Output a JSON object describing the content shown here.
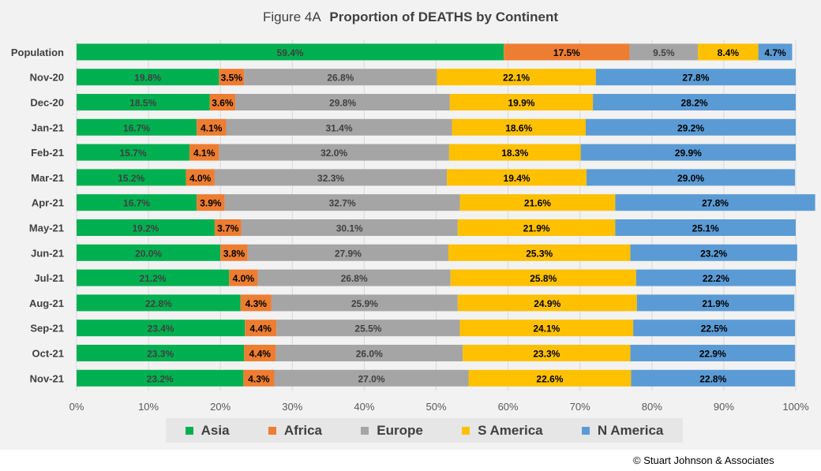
{
  "chart_data": {
    "type": "bar",
    "orientation": "horizontal",
    "stacked": "percent",
    "title_prefix": "Figure  4A",
    "title": "Proportion of DEATHS by Continent",
    "categories": [
      "Population",
      "Nov-20",
      "Dec-20",
      "Jan-21",
      "Feb-21",
      "Mar-21",
      "Apr-21",
      "May-21",
      "Jun-21",
      "Jul-21",
      "Aug-21",
      "Sep-21",
      "Oct-21",
      "Nov-21"
    ],
    "series": [
      {
        "name": "Asia",
        "color": "#00b050",
        "values": [
          59.4,
          19.8,
          18.5,
          16.7,
          15.7,
          15.2,
          16.7,
          19.2,
          20.0,
          21.2,
          22.8,
          23.4,
          23.3,
          23.2
        ]
      },
      {
        "name": "Africa",
        "color": "#ed7d31",
        "values": [
          17.5,
          3.5,
          3.6,
          4.1,
          4.1,
          4.0,
          3.9,
          3.7,
          3.8,
          4.0,
          4.3,
          4.4,
          4.4,
          4.3
        ]
      },
      {
        "name": "Europe",
        "color": "#a5a5a5",
        "values": [
          9.5,
          26.8,
          29.8,
          31.4,
          32.0,
          32.3,
          32.7,
          30.1,
          27.9,
          26.8,
          25.9,
          25.5,
          26.0,
          27.0
        ]
      },
      {
        "name": "S America",
        "color": "#ffc000",
        "values": [
          8.4,
          22.1,
          19.9,
          18.6,
          18.3,
          19.4,
          21.6,
          21.9,
          25.3,
          25.8,
          24.9,
          24.1,
          23.3,
          22.6
        ]
      },
      {
        "name": "N America",
        "color": "#5b9bd5",
        "values": [
          4.7,
          27.8,
          28.2,
          29.2,
          29.9,
          29.0,
          27.8,
          25.1,
          23.2,
          22.2,
          21.9,
          22.5,
          22.9,
          22.8
        ]
      }
    ],
    "x_ticks": [
      "0%",
      "10%",
      "20%",
      "30%",
      "40%",
      "50%",
      "60%",
      "70%",
      "80%",
      "90%",
      "100%"
    ],
    "xlim": [
      0,
      100
    ],
    "grid": true,
    "legend_position": "bottom"
  },
  "legend": [
    {
      "label": "Asia",
      "color": "#00b050"
    },
    {
      "label": "Africa",
      "color": "#ed7d31"
    },
    {
      "label": "Europe",
      "color": "#a5a5a5"
    },
    {
      "label": "S America",
      "color": "#ffc000"
    },
    {
      "label": "N America",
      "color": "#5b9bd5"
    }
  ],
  "copyright": "© Stuart Johnson & Associates"
}
